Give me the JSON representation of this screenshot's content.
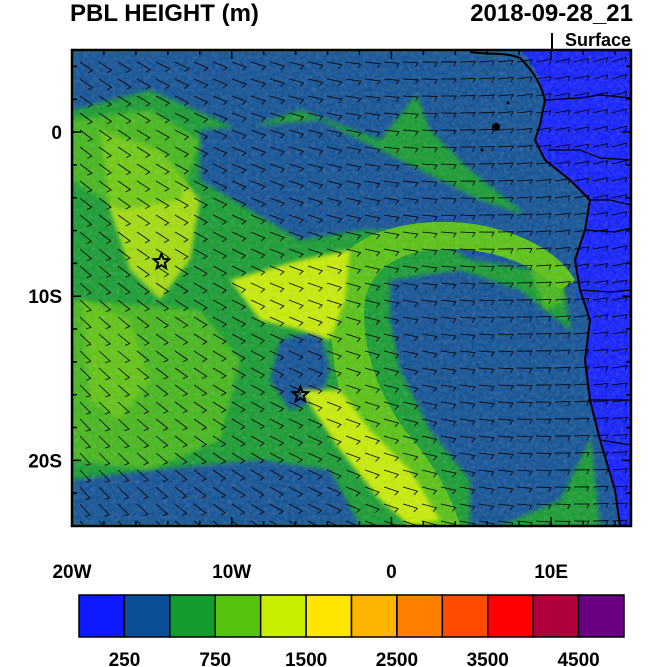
{
  "title": "PBL HEIGHT (m)",
  "datetime": "2018-09-28_21",
  "level": "Surface",
  "x_ticks": [
    "20W",
    "10W",
    "0",
    "10E"
  ],
  "y_ticks": [
    "0",
    "10S",
    "20S"
  ],
  "colorbar": {
    "colors": [
      "#0d1aff",
      "#0b4f96",
      "#139c2e",
      "#56c40f",
      "#c9ef00",
      "#ffe600",
      "#ffb400",
      "#ff8000",
      "#ff4b00",
      "#ff0000",
      "#b0003c",
      "#6a0082"
    ],
    "labels": [
      "250",
      "750",
      "1500",
      "2500",
      "3500",
      "4500"
    ]
  },
  "map": {
    "lon_range": [
      -20,
      15
    ],
    "lat_range": [
      -24,
      5
    ],
    "stars": [
      {
        "name": "star-ascension-area",
        "lon": -14.4,
        "lat": -7.9
      },
      {
        "name": "star-st-helena-area",
        "lon": -5.7,
        "lat": -16.0
      }
    ]
  }
}
